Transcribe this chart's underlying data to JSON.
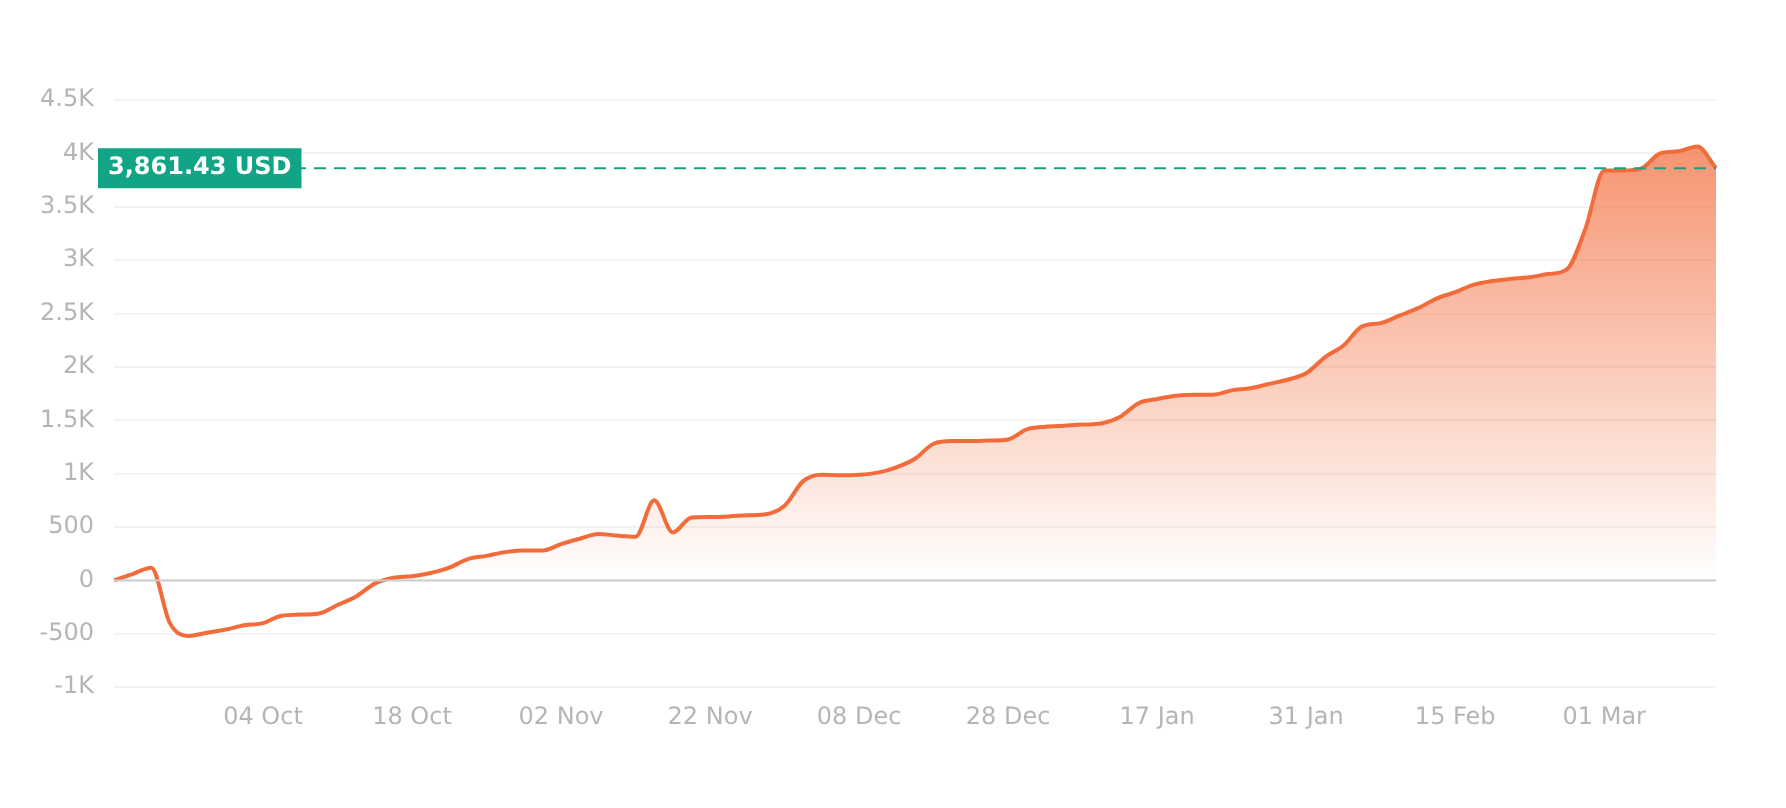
{
  "chart_data": {
    "type": "area",
    "categories": [
      null,
      null,
      null,
      null,
      null,
      null,
      null,
      null,
      "04 Oct",
      null,
      null,
      null,
      null,
      null,
      null,
      null,
      "18 Oct",
      null,
      null,
      null,
      null,
      null,
      null,
      null,
      "02 Nov",
      null,
      null,
      null,
      null,
      null,
      null,
      null,
      "22 Nov",
      null,
      null,
      null,
      null,
      null,
      null,
      null,
      "08 Dec",
      null,
      null,
      null,
      null,
      null,
      null,
      null,
      "28 Dec",
      null,
      null,
      null,
      null,
      null,
      null,
      null,
      "17 Jan",
      null,
      null,
      null,
      null,
      null,
      null,
      null,
      "31 Jan",
      null,
      null,
      null,
      null,
      null,
      null,
      null,
      "15 Feb",
      null,
      null,
      null,
      null,
      null,
      null,
      null,
      "01 Mar",
      null,
      null,
      null,
      null,
      null,
      null
    ],
    "series": [
      {
        "color": "#f26b3a",
        "values": [
          0,
          60,
          120,
          -400,
          -520,
          -490,
          -460,
          -420,
          -400,
          -330,
          -320,
          -310,
          -230,
          -150,
          -30,
          25,
          40,
          70,
          120,
          200,
          230,
          265,
          280,
          280,
          340,
          390,
          435,
          420,
          410,
          750,
          450,
          590,
          595,
          600,
          610,
          620,
          700,
          930,
          990,
          985,
          990,
          1010,
          1060,
          1140,
          1280,
          1305,
          1305,
          1310,
          1320,
          1415,
          1440,
          1450,
          1460,
          1470,
          1530,
          1660,
          1700,
          1730,
          1740,
          1740,
          1780,
          1800,
          1840,
          1880,
          1940,
          2090,
          2200,
          2380,
          2410,
          2480,
          2550,
          2640,
          2700,
          2770,
          2805,
          2825,
          2840,
          2870,
          2915,
          3300,
          3840,
          3840,
          3860,
          4000,
          4020,
          4065,
          3861.43
        ]
      }
    ],
    "ylim": [
      -1000,
      4500
    ],
    "yticks": [
      {
        "value": -1000,
        "label": "-1K"
      },
      -500,
      0,
      500,
      {
        "value": 1000,
        "label": "1K"
      },
      {
        "value": 1500,
        "label": "1.5K"
      },
      {
        "value": 2000,
        "label": "2K"
      },
      {
        "value": 2500,
        "label": "2.5K"
      },
      {
        "value": 3000,
        "label": "3K"
      },
      {
        "value": 3500,
        "label": "3.5K"
      },
      {
        "value": 4000,
        "label": "4K"
      },
      {
        "value": 4500,
        "label": "4.5K"
      }
    ],
    "grid": "y",
    "legend": false,
    "marker": "none",
    "ref_lines": [
      {
        "axis": "y",
        "value": 0,
        "label": null,
        "color": "#cccccc",
        "line_style": "solid"
      },
      {
        "axis": "y",
        "value": 3861.43,
        "label": "3,861.43 USD",
        "color": "#12a585",
        "line_style": "dashed"
      }
    ]
  }
}
